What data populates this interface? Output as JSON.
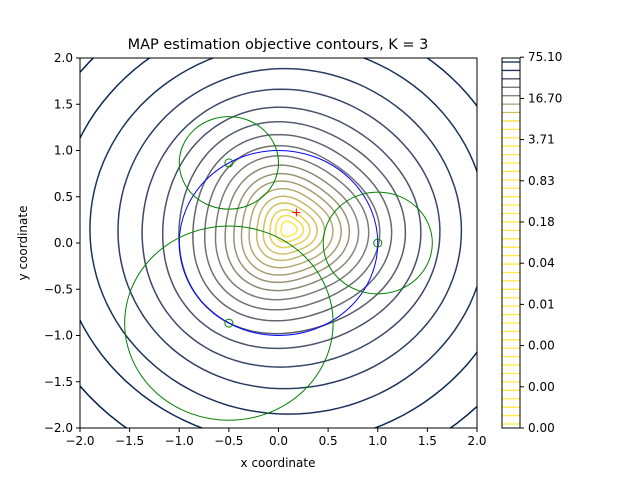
{
  "chart_data": {
    "type": "contour",
    "title": "MAP estimation objective contours, K = 3",
    "xlabel": "x coordinate",
    "ylabel": "y coordinate",
    "xlim": [
      -2,
      2
    ],
    "ylim": [
      -2,
      2
    ],
    "xticks": [
      -2.0,
      -1.5,
      -1.0,
      -0.5,
      0.0,
      0.5,
      1.0,
      1.5,
      2.0
    ],
    "yticks": [
      -2.0,
      -1.5,
      -1.0,
      -0.5,
      0.0,
      0.5,
      1.0,
      1.5,
      2.0
    ],
    "xtick_labels": [
      "−2.0",
      "−1.5",
      "−1.0",
      "−0.5",
      "0.0",
      "0.5",
      "1.0",
      "1.5",
      "2.0"
    ],
    "ytick_labels": [
      "−2.0",
      "−1.5",
      "−1.0",
      "−0.5",
      "0.0",
      "0.5",
      "1.0",
      "1.5",
      "2.0"
    ],
    "colorbar": {
      "colormap": "cividis",
      "tick_labels": [
        "0.00",
        "0.00",
        "0.00",
        "0.01",
        "0.04",
        "0.18",
        "0.83",
        "3.71",
        "16.70",
        "75.10"
      ]
    },
    "contour_center": [
      0.1,
      0.15
    ],
    "unit_circle": {
      "center": [
        0,
        0
      ],
      "radius": 1.0,
      "color": "#0000ff"
    },
    "anchors": [
      {
        "x": 1.0,
        "y": 0.0,
        "radius": 0.55
      },
      {
        "x": -0.5,
        "y": 0.866,
        "radius": 0.5
      },
      {
        "x": -0.5,
        "y": -0.866,
        "radius": 1.05
      }
    ],
    "anchor_color": "#008000",
    "estimate": {
      "x": 0.18,
      "y": 0.33,
      "color": "#ff0000"
    }
  }
}
